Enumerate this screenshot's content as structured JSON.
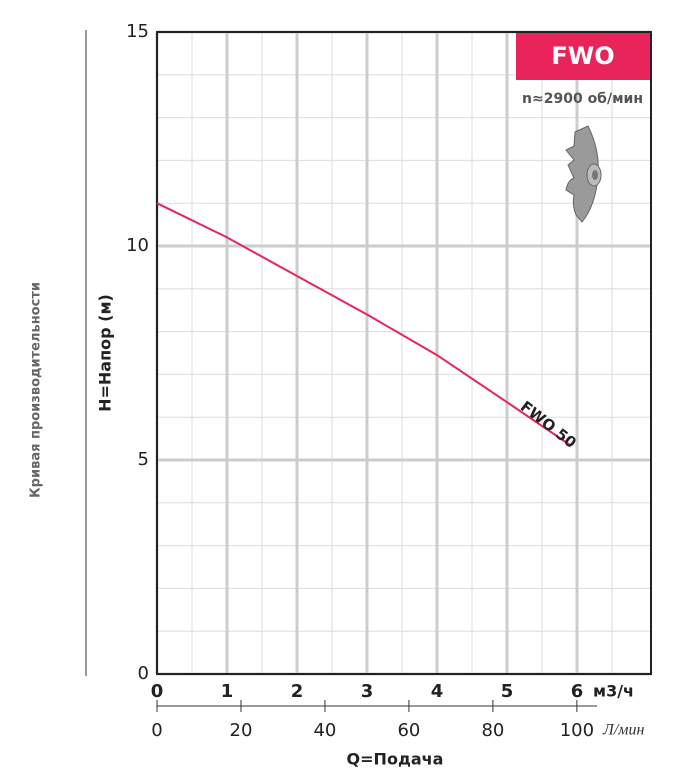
{
  "chart_data": {
    "type": "line",
    "title": "FWO",
    "subtitle": "n≈2900 об/мин",
    "side_label": "Кривая производительности",
    "ylabel": "H=Напор (м)",
    "xlabel": "Q=Подача",
    "x_unit": "м3/ч",
    "x2_unit": "Л/мин",
    "x": [
      0,
      1,
      2,
      3,
      4,
      5,
      5.9
    ],
    "series": [
      {
        "name": "FWO 50",
        "color": "#e8245a",
        "values": [
          11.0,
          10.2,
          9.3,
          8.4,
          7.45,
          6.35,
          5.35
        ]
      }
    ],
    "xlim": [
      0,
      7
    ],
    "xticks": [
      0,
      1,
      2,
      3,
      4,
      5,
      6
    ],
    "x2lim": [
      0,
      116.7
    ],
    "x2ticks": [
      0,
      20,
      40,
      60,
      80,
      100
    ],
    "ylim": [
      0,
      15
    ],
    "yticks": [
      0,
      5,
      10,
      15
    ],
    "yminorticks": [
      1,
      2,
      3,
      4,
      6,
      7,
      8,
      9,
      11,
      12,
      13,
      14
    ],
    "xminorticks": [
      0.5,
      1.5,
      2.5,
      3.5,
      4.5,
      5.5,
      6.5
    ],
    "grid": true
  }
}
